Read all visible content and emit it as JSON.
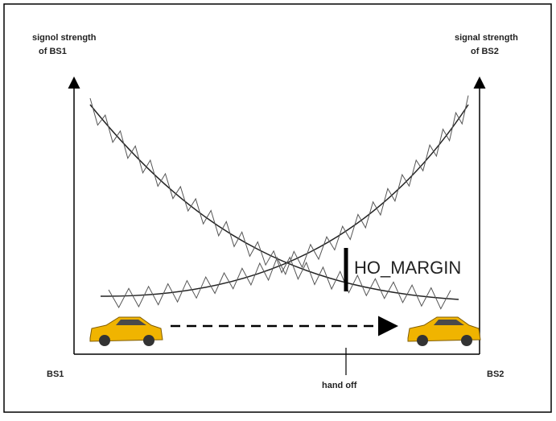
{
  "axes": {
    "left_label": [
      "signol strength",
      "of BS1"
    ],
    "right_label": [
      "signal strength",
      "of BS2"
    ],
    "left_station": "BS1",
    "right_station": "BS2",
    "handoff": "hand off"
  },
  "margin_label": "HO_MARGIN"
}
